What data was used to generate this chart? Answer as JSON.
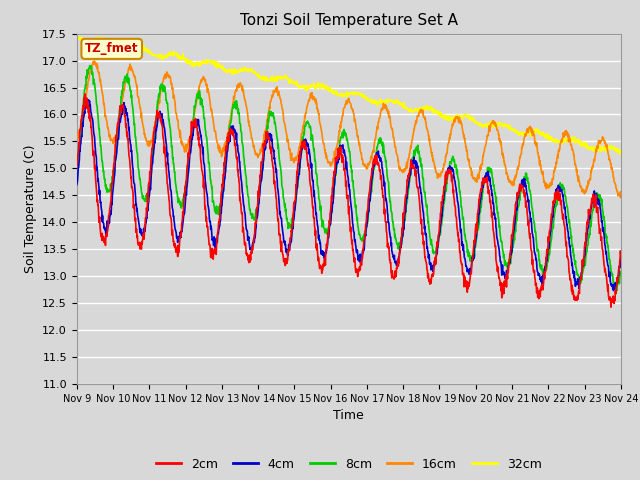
{
  "title": "Tonzi Soil Temperature Set A",
  "xlabel": "Time",
  "ylabel": "Soil Temperature (C)",
  "ylim": [
    11.0,
    17.5
  ],
  "yticks": [
    11.0,
    11.5,
    12.0,
    12.5,
    13.0,
    13.5,
    14.0,
    14.5,
    15.0,
    15.5,
    16.0,
    16.5,
    17.0,
    17.5
  ],
  "xtick_labels": [
    "Nov 9",
    "Nov 10",
    "Nov 11",
    "Nov 12",
    "Nov 13",
    "Nov 14",
    "Nov 15",
    "Nov 16",
    "Nov 17",
    "Nov 18",
    "Nov 19",
    "Nov 20",
    "Nov 21",
    "Nov 22",
    "Nov 23",
    "Nov 24"
  ],
  "colors": {
    "2cm": "#ff0000",
    "4cm": "#0000cc",
    "8cm": "#00cc00",
    "16cm": "#ff8800",
    "32cm": "#ffff00"
  },
  "annotation_text": "TZ_fmet",
  "annotation_color": "#cc0000",
  "annotation_bg": "#ffffcc",
  "background_color": "#d8d8d8",
  "num_points": 1500,
  "n_days": 15
}
